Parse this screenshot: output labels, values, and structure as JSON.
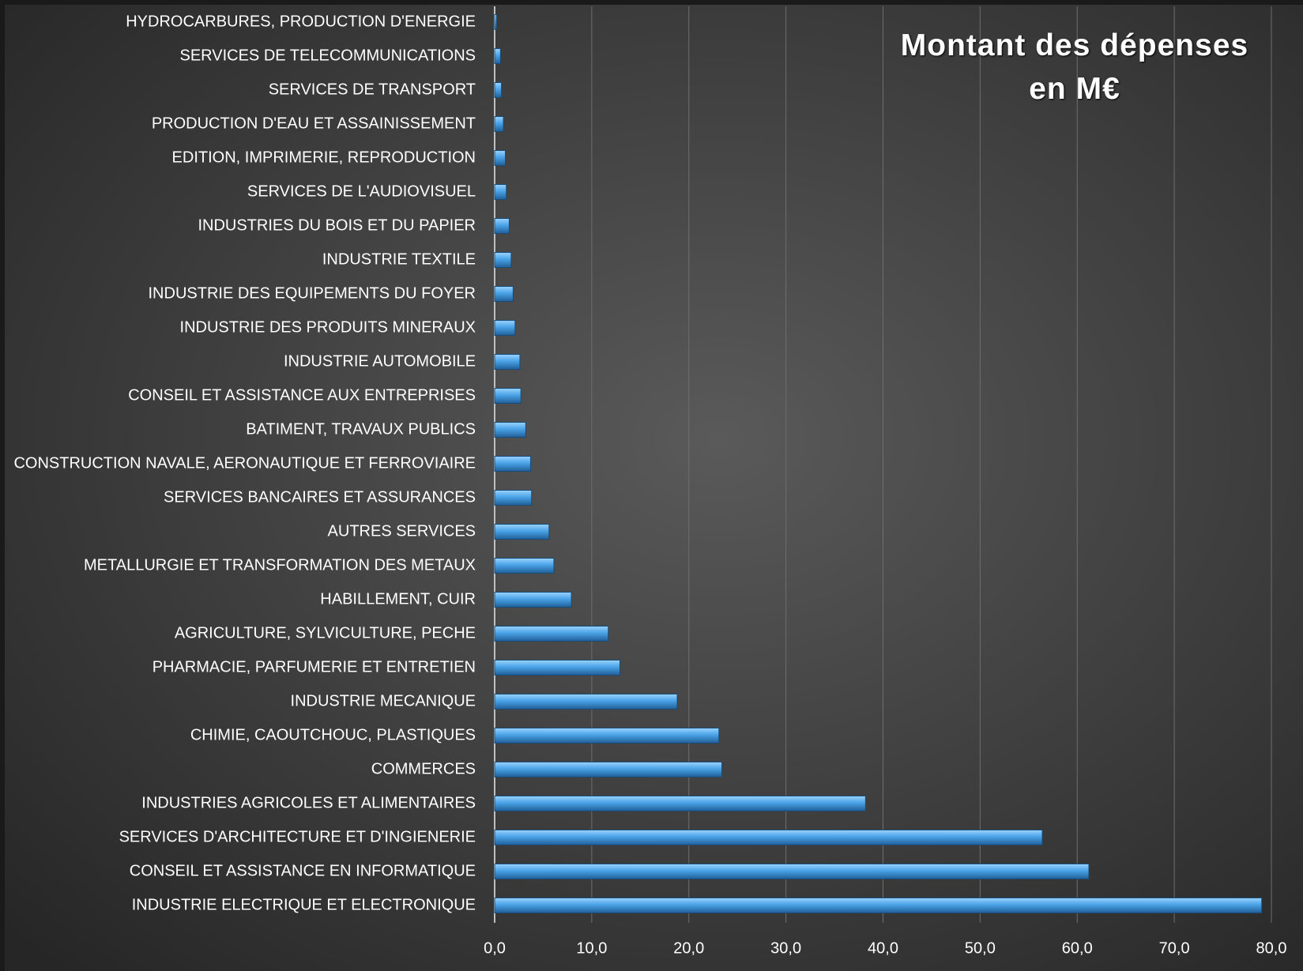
{
  "chart_data": {
    "type": "bar",
    "orientation": "horizontal",
    "title": "Montant des dépenses en M€",
    "categories": [
      "HYDROCARBURES, PRODUCTION D'ENERGIE",
      "SERVICES DE TELECOMMUNICATIONS",
      "SERVICES DE TRANSPORT",
      "PRODUCTION D'EAU ET ASSAINISSEMENT",
      "EDITION, IMPRIMERIE, REPRODUCTION",
      "SERVICES DE L'AUDIOVISUEL",
      "INDUSTRIES DU BOIS ET DU PAPIER",
      "INDUSTRIE TEXTILE",
      "INDUSTRIE DES EQUIPEMENTS DU FOYER",
      "INDUSTRIE DES PRODUITS MINERAUX",
      "INDUSTRIE AUTOMOBILE",
      "CONSEIL ET ASSISTANCE AUX ENTREPRISES",
      "BATIMENT, TRAVAUX PUBLICS",
      "CONSTRUCTION NAVALE, AERONAUTIQUE ET FERROVIAIRE",
      "SERVICES BANCAIRES ET ASSURANCES",
      "AUTRES SERVICES",
      "METALLURGIE ET TRANSFORMATION DES METAUX",
      "HABILLEMENT, CUIR",
      "AGRICULTURE, SYLVICULTURE, PECHE",
      "PHARMACIE, PARFUMERIE ET ENTRETIEN",
      "INDUSTRIE MECANIQUE",
      "CHIMIE, CAOUTCHOUC, PLASTIQUES",
      "COMMERCES",
      "INDUSTRIES AGRICOLES ET ALIMENTAIRES",
      "SERVICES D'ARCHITECTURE ET D'INGIENERIE",
      "CONSEIL ET ASSISTANCE EN INFORMATIQUE",
      "INDUSTRIE ELECTRIQUE ET ELECTRONIQUE"
    ],
    "values": [
      0.2,
      0.6,
      0.7,
      0.9,
      1.1,
      1.2,
      1.5,
      1.7,
      1.9,
      2.1,
      2.6,
      2.7,
      3.2,
      3.7,
      3.8,
      5.6,
      6.1,
      7.9,
      11.7,
      12.9,
      18.8,
      23.1,
      23.4,
      38.2,
      56.4,
      61.2,
      79.0
    ],
    "color": "#4aa3e6",
    "xlim": [
      0,
      80
    ],
    "xticks": [
      {
        "value": 0,
        "label": "0,0"
      },
      {
        "value": 10,
        "label": "10,0"
      },
      {
        "value": 20,
        "label": "20,0"
      },
      {
        "value": 30,
        "label": "30,0"
      },
      {
        "value": 40,
        "label": "40,0"
      },
      {
        "value": 50,
        "label": "50,0"
      },
      {
        "value": 60,
        "label": "60,0"
      },
      {
        "value": 70,
        "label": "70,0"
      },
      {
        "value": 80,
        "label": "80,0"
      }
    ],
    "grid": true
  }
}
